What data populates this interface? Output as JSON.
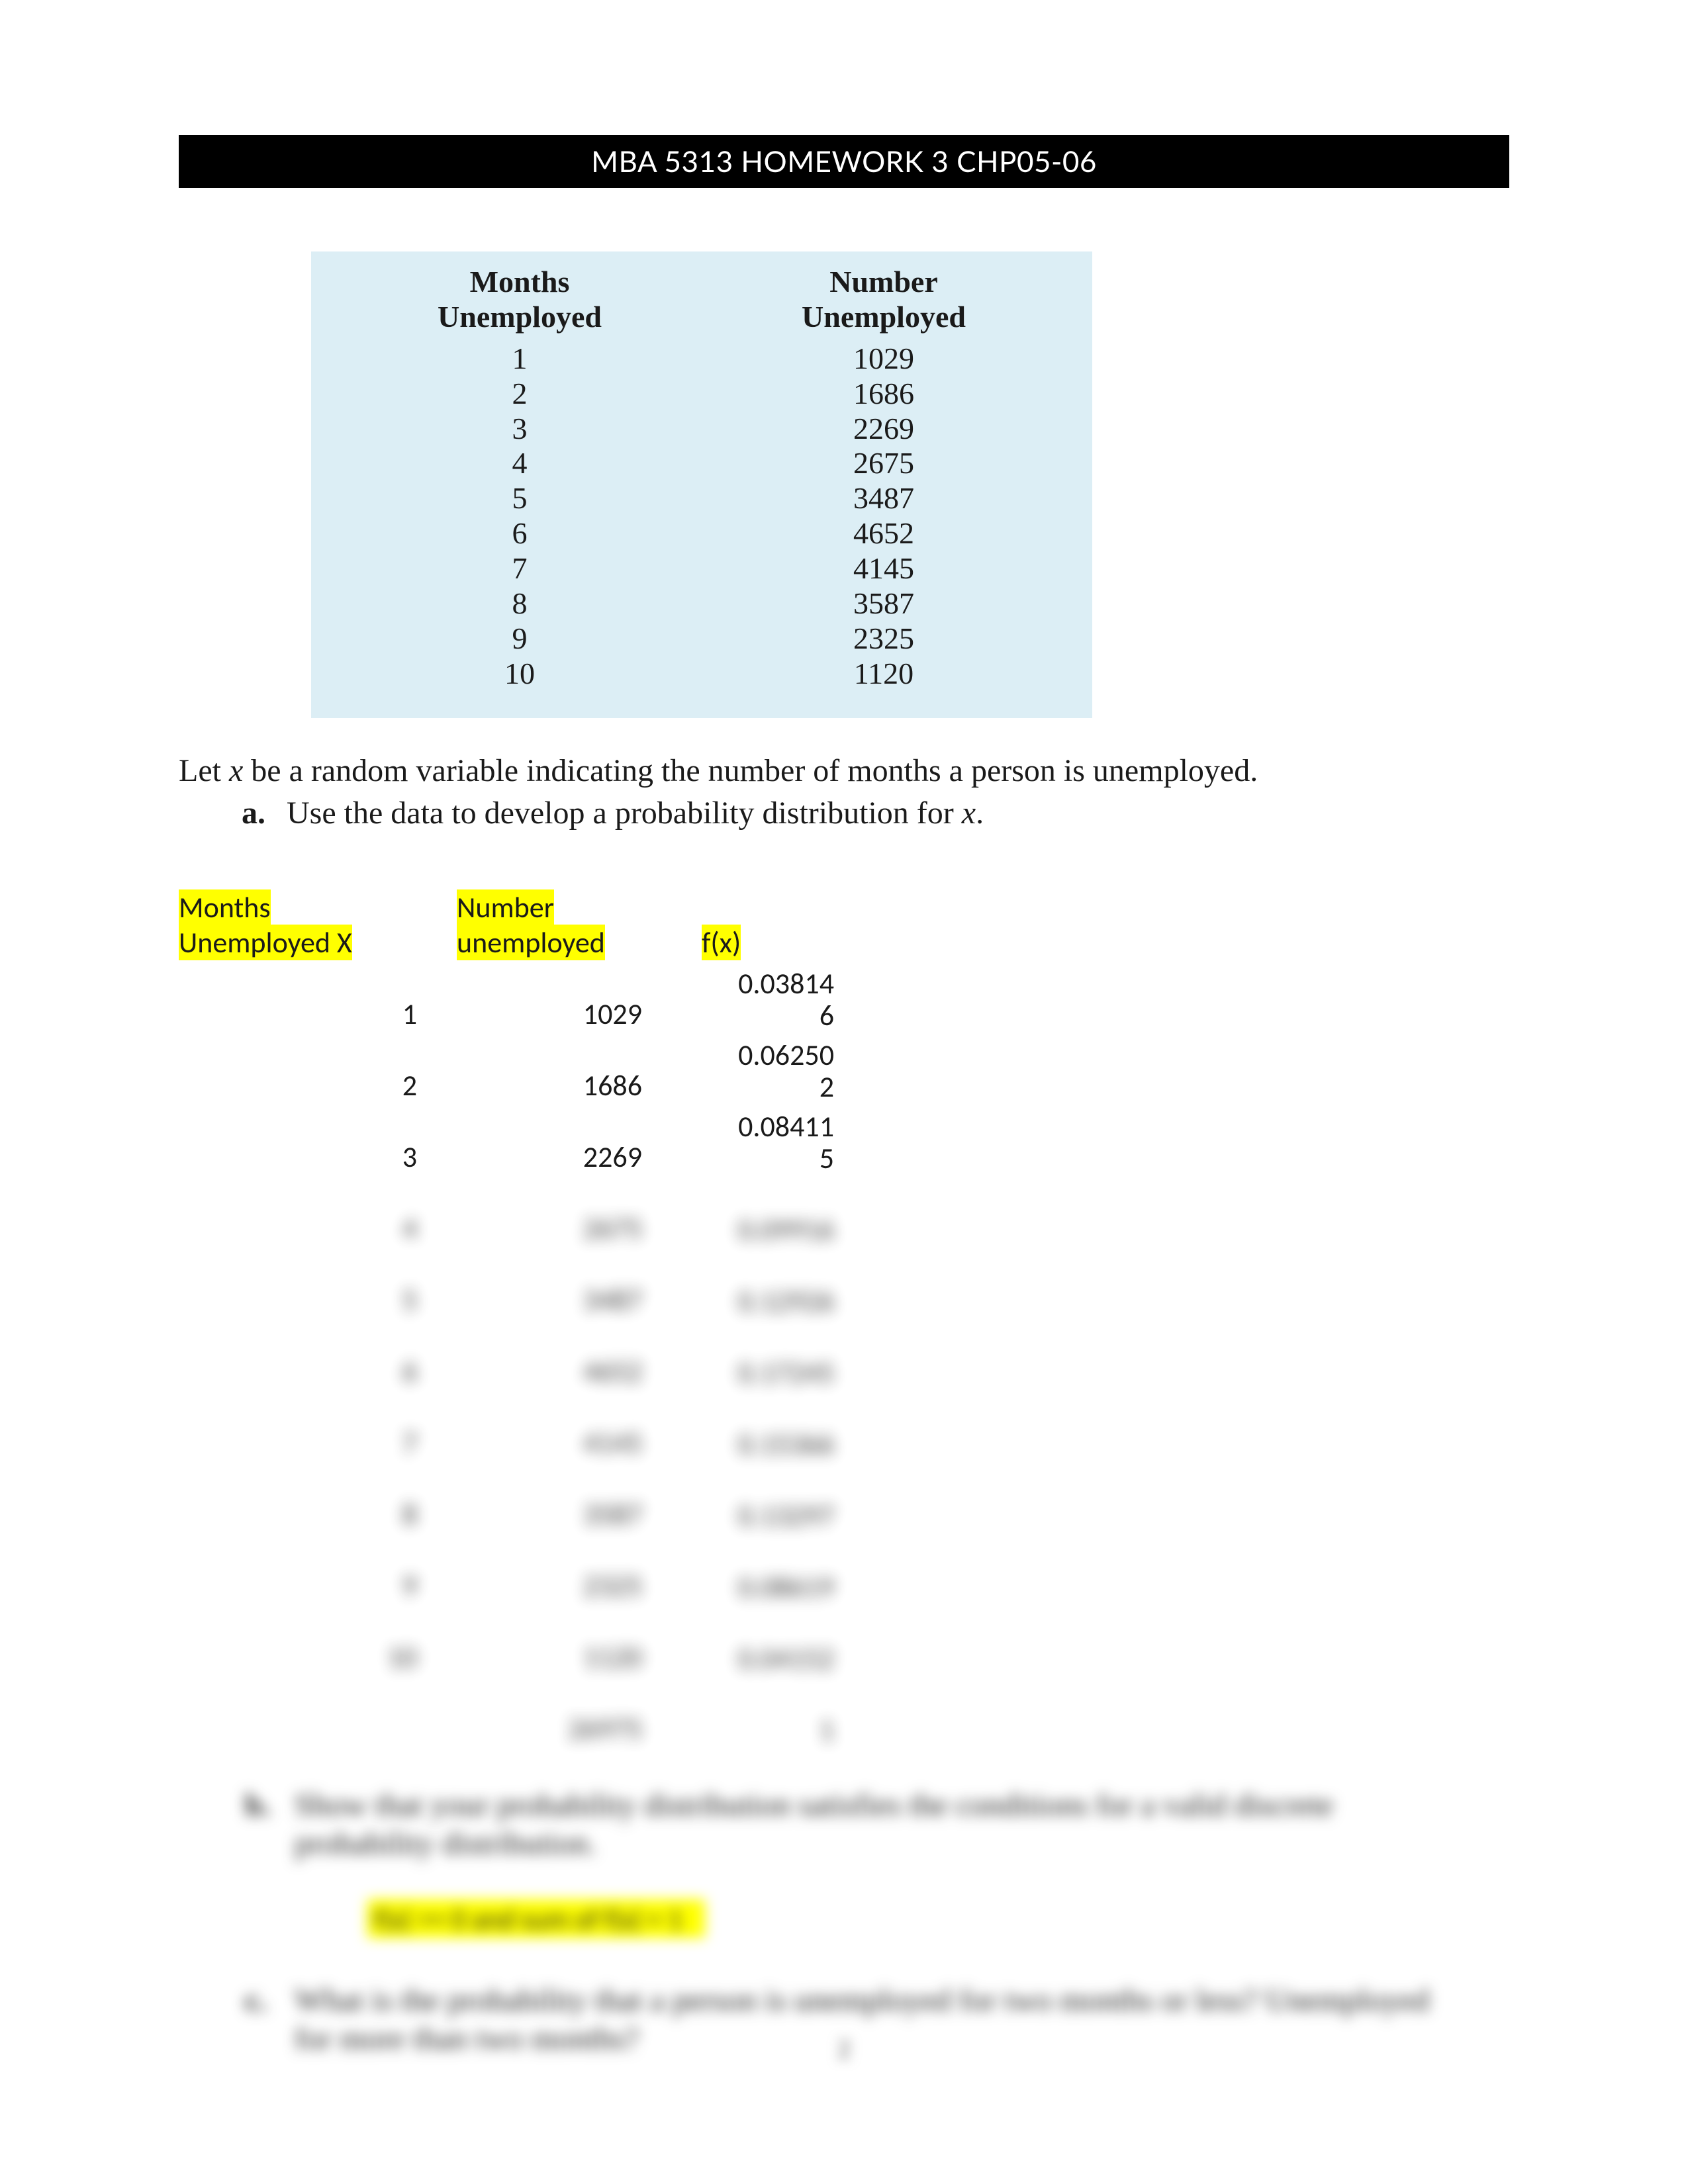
{
  "header": {
    "title": "MBA 5313 HOMEWORK 3 CHP05-06"
  },
  "data_table": {
    "background_color": "#dceef5",
    "headers": {
      "col1_line1": "Months",
      "col1_line2": "Unemployed",
      "col2_line1": "Number",
      "col2_line2": "Unemployed"
    },
    "rows": [
      {
        "months": "1",
        "number": "1029"
      },
      {
        "months": "2",
        "number": "1686"
      },
      {
        "months": "3",
        "number": "2269"
      },
      {
        "months": "4",
        "number": "2675"
      },
      {
        "months": "5",
        "number": "3487"
      },
      {
        "months": "6",
        "number": "4652"
      },
      {
        "months": "7",
        "number": "4145"
      },
      {
        "months": "8",
        "number": "3587"
      },
      {
        "months": "9",
        "number": "2325"
      },
      {
        "months": "10",
        "number": "1120"
      }
    ]
  },
  "prompt": {
    "lead_in_pre": "Let ",
    "lead_in_var": "x",
    "lead_in_post": " be a random variable indicating the number of months a person is unemployed.",
    "part_a_label": "a.",
    "part_a_text_pre": "Use the data to develop a probability distribution for ",
    "part_a_var": "x",
    "part_a_text_post": "."
  },
  "answer_table": {
    "headers": {
      "col_x_line1": "Months",
      "col_x_line2": "Unemployed X",
      "col_n_line1": "Number",
      "col_n_line2": "unemployed",
      "col_f": "f(x)"
    },
    "visible_rows": [
      {
        "x": "1",
        "n": "1029",
        "f_top": "0.03814",
        "f_bot": "6"
      },
      {
        "x": "2",
        "n": "1686",
        "f_top": "0.06250",
        "f_bot": "2"
      },
      {
        "x": "3",
        "n": "2269",
        "f_top": "0.08411",
        "f_bot": "5"
      }
    ],
    "blurred_rows": [
      {
        "x": "4",
        "n": "2675",
        "f": "0.09916"
      },
      {
        "x": "5",
        "n": "3487",
        "f": "0.12926"
      },
      {
        "x": "6",
        "n": "4652",
        "f": "0.17245"
      },
      {
        "x": "7",
        "n": "4145",
        "f": "0.15366"
      },
      {
        "x": "8",
        "n": "3587",
        "f": "0.13297"
      },
      {
        "x": "9",
        "n": "2325",
        "f": "0.08619"
      },
      {
        "x": "10",
        "n": "1120",
        "f": "0.04152"
      },
      {
        "x": "",
        "n": "26975",
        "f": "1"
      }
    ]
  },
  "blurred_text": {
    "part_b_label": "b.",
    "part_b_line1": "Show that your probability distribution satisfies the conditions for a valid discrete",
    "part_b_line2": "probability distribution.",
    "highlight_b": "f(x) >= 0 and sum of f(x) = 1",
    "part_c_label": "c.",
    "part_c_line1": "What is the probability that a person is unemployed for two months or less? Unemployed",
    "part_c_line2": "for more than two months?"
  },
  "page_number": "2"
}
